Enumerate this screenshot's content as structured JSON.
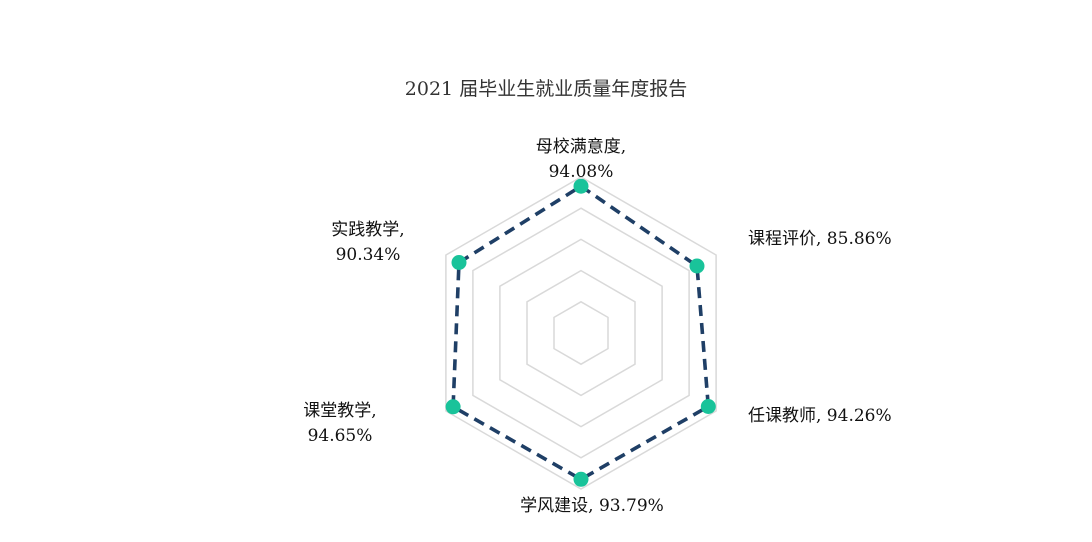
{
  "chart_data": {
    "type": "radar",
    "title": "2021 届毕业生就业质量年度报告",
    "axes": [
      {
        "name": "母校满意度",
        "value": 94.08,
        "label_lines": [
          "母校满意度,",
          "94.08%"
        ]
      },
      {
        "name": "课程评价",
        "value": 85.86,
        "label_lines": [
          "课程评价, 85.86%"
        ]
      },
      {
        "name": "任课教师",
        "value": 94.26,
        "label_lines": [
          "任课教师, 94.26%"
        ]
      },
      {
        "name": "学风建设",
        "value": 93.79,
        "label_lines": [
          "学风建设, 93.79%"
        ]
      },
      {
        "name": "课堂教学",
        "value": 94.65,
        "label_lines": [
          "课堂教学,",
          "94.65%"
        ]
      },
      {
        "name": "实践教学",
        "value": 90.34,
        "label_lines": [
          "实践教学,",
          "90.34%"
        ]
      }
    ],
    "range": [
      0,
      100
    ],
    "grid_rings": 5,
    "colors": {
      "line": "#1f3f66",
      "marker": "#19c39a",
      "grid": "#d9d9d9"
    }
  }
}
